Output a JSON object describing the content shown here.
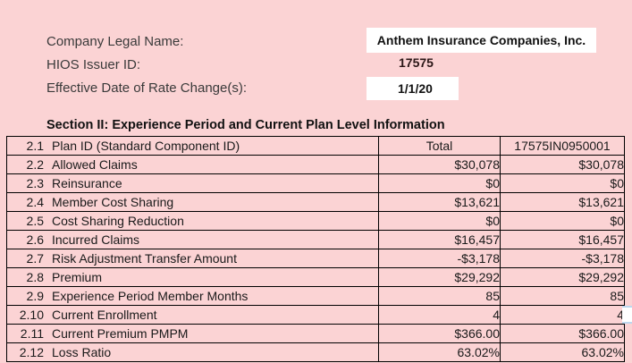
{
  "form": {
    "fields": [
      {
        "label": "Company Legal Name:",
        "value": "Anthem Insurance Companies, Inc."
      },
      {
        "label": "HIOS Issuer ID:",
        "value": "17575"
      },
      {
        "label": "Effective Date of Rate Change(s):",
        "value": "1/1/20"
      }
    ]
  },
  "section_title": "Section II: Experience Period and Current Plan Level Information",
  "table": {
    "columns": {
      "label": "",
      "total_header": "Total",
      "plan_header": "17575IN0950001"
    },
    "rows": [
      {
        "num": "2.1",
        "label": "Plan ID (Standard Component ID)",
        "total": "Total",
        "plan": "17575IN0950001"
      },
      {
        "num": "2.2",
        "label": "Allowed Claims",
        "total": "$30,078",
        "plan": "$30,078"
      },
      {
        "num": "2.3",
        "label": "Reinsurance",
        "total": "$0",
        "plan": "$0"
      },
      {
        "num": "2.4",
        "label": "Member Cost Sharing",
        "total": "$13,621",
        "plan": "$13,621"
      },
      {
        "num": "2.5",
        "label": "Cost Sharing Reduction",
        "total": "$0",
        "plan": "$0"
      },
      {
        "num": "2.6",
        "label": "Incurred Claims",
        "total": "$16,457",
        "plan": "$16,457"
      },
      {
        "num": "2.7",
        "label": "Risk Adjustment Transfer Amount",
        "total": "-$3,178",
        "plan": "-$3,178"
      },
      {
        "num": "2.8",
        "label": "Premium",
        "total": "$29,292",
        "plan": "$29,292"
      },
      {
        "num": "2.9",
        "label": "Experience Period Member Months",
        "total": "85",
        "plan": "85"
      },
      {
        "num": "2.10",
        "label": "Current Enrollment",
        "total": "4",
        "plan": "4"
      },
      {
        "num": "2.11",
        "label": "Current Premium PMPM",
        "total": "$366.00",
        "plan": "$366.00"
      },
      {
        "num": "2.12",
        "label": "Loss Ratio",
        "total": "63.02%",
        "plan": "63.02%"
      }
    ],
    "selected_row": "2.10"
  },
  "colors": {
    "background_pink": "#fbd3d4",
    "cell_purple": "#a6aad8",
    "selected_cell_blue": "#a0caf4",
    "selected_row_white": "#ffffff",
    "grid_border": "#000000",
    "selection_outline_blue": "#bdd7ee"
  }
}
